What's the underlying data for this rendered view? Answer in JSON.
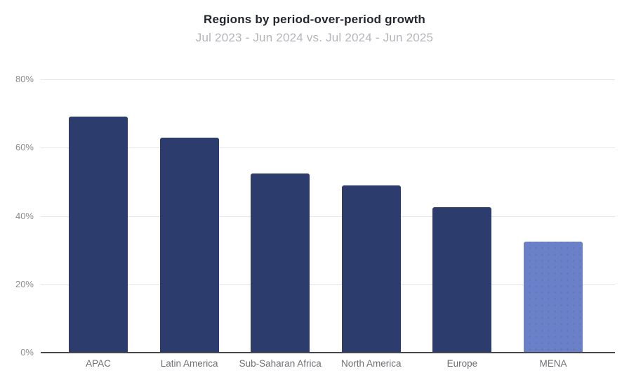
{
  "chart_data": {
    "type": "bar",
    "title": "Regions by period-over-period growth",
    "subtitle": "Jul 2023 - Jun 2024 vs. Jul 2024 - Jun 2025",
    "categories": [
      "APAC",
      "Latin America",
      "Sub-Saharan Africa",
      "North America",
      "Europe",
      "MENA"
    ],
    "values": [
      69,
      63,
      52.5,
      49,
      42.5,
      32.5
    ],
    "xlabel": "",
    "ylabel": "",
    "ylim": [
      0,
      80
    ],
    "y_ticks": [
      {
        "label": "0%",
        "value": 0
      },
      {
        "label": "20%",
        "value": 20
      },
      {
        "label": "40%",
        "value": 40
      },
      {
        "label": "60%",
        "value": 60
      },
      {
        "label": "80%",
        "value": 80
      }
    ],
    "grid": "horizontal",
    "legend": "none",
    "colors": {
      "bar_default": "#2b3c6d",
      "bar_highlight": "#6a80c8",
      "highlight_category": "MENA",
      "gridline": "#e4e4e7",
      "axis_line": "#48484c",
      "title_text": "#23262e",
      "subtitle_text": "#b5b5ba",
      "tick_text": "#8b8b90",
      "category_text": "#6f6f74"
    }
  }
}
